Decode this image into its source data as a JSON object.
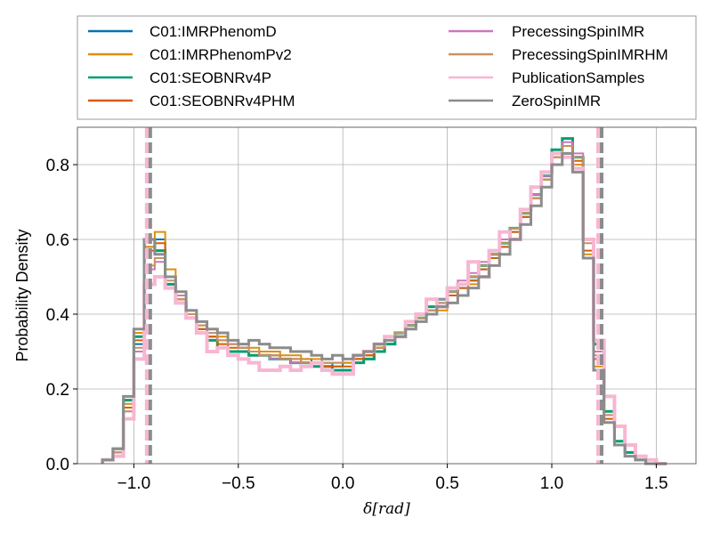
{
  "chart_data": {
    "type": "line",
    "subtype": "step-histogram",
    "xlabel": "δ[rad]",
    "ylabel": "Probability Density",
    "xlim": [
      -1.27,
      1.69
    ],
    "ylim": [
      0,
      0.9
    ],
    "xticks": [
      -1.0,
      -0.5,
      0.0,
      0.5,
      1.0,
      1.5
    ],
    "xtick_labels": [
      "−1.0",
      "−0.5",
      "0.0",
      "0.5",
      "1.0",
      "1.5"
    ],
    "yticks": [
      0.0,
      0.2,
      0.4,
      0.6,
      0.8
    ],
    "ytick_labels": [
      "0.0",
      "0.2",
      "0.4",
      "0.6",
      "0.8"
    ],
    "grid": true,
    "legend_position": "above plot, two columns",
    "vertical_lines": [
      {
        "x": -0.93,
        "style": "dashed",
        "colors": [
          "#f7b6d2",
          "#8c8c8c"
        ]
      },
      {
        "x": 1.23,
        "style": "dashed",
        "colors": [
          "#f7b6d2",
          "#8c8c8c"
        ]
      }
    ],
    "series": [
      {
        "name": "C01:IMRPhenomD",
        "color": "#0173b2",
        "width": 2,
        "x": [
          -1.15,
          -1.1,
          -1.05,
          -1.0,
          -0.95,
          -0.9,
          -0.85,
          -0.8,
          -0.75,
          -0.7,
          -0.65,
          -0.6,
          -0.55,
          -0.5,
          -0.45,
          -0.4,
          -0.35,
          -0.3,
          -0.25,
          -0.2,
          -0.15,
          -0.1,
          -0.05,
          0.0,
          0.05,
          0.1,
          0.15,
          0.2,
          0.25,
          0.3,
          0.35,
          0.4,
          0.45,
          0.5,
          0.55,
          0.6,
          0.65,
          0.7,
          0.75,
          0.8,
          0.85,
          0.9,
          0.95,
          1.0,
          1.05,
          1.1,
          1.15,
          1.2,
          1.25,
          1.3,
          1.35,
          1.4,
          1.45,
          1.5
        ],
        "y": [
          0.01,
          0.03,
          0.15,
          0.32,
          0.58,
          0.6,
          0.5,
          0.45,
          0.4,
          0.36,
          0.34,
          0.33,
          0.32,
          0.31,
          0.3,
          0.29,
          0.29,
          0.28,
          0.28,
          0.28,
          0.27,
          0.27,
          0.26,
          0.27,
          0.28,
          0.29,
          0.31,
          0.33,
          0.35,
          0.37,
          0.39,
          0.41,
          0.43,
          0.45,
          0.47,
          0.49,
          0.52,
          0.55,
          0.58,
          0.62,
          0.66,
          0.71,
          0.76,
          0.82,
          0.85,
          0.8,
          0.55,
          0.25,
          0.11,
          0.05,
          0.02,
          0.01,
          0.0,
          0.0
        ]
      },
      {
        "name": "C01:IMRPhenomPv2",
        "color": "#de8f05",
        "width": 2,
        "x": [
          -1.15,
          -1.1,
          -1.05,
          -1.0,
          -0.95,
          -0.9,
          -0.85,
          -0.8,
          -0.75,
          -0.7,
          -0.65,
          -0.6,
          -0.55,
          -0.5,
          -0.45,
          -0.4,
          -0.35,
          -0.3,
          -0.25,
          -0.2,
          -0.15,
          -0.1,
          -0.05,
          0.0,
          0.05,
          0.1,
          0.15,
          0.2,
          0.25,
          0.3,
          0.35,
          0.4,
          0.45,
          0.5,
          0.55,
          0.6,
          0.65,
          0.7,
          0.75,
          0.8,
          0.85,
          0.9,
          0.95,
          1.0,
          1.05,
          1.1,
          1.15,
          1.2,
          1.25,
          1.3,
          1.35,
          1.4,
          1.45,
          1.5
        ],
        "y": [
          0.01,
          0.03,
          0.16,
          0.35,
          0.58,
          0.62,
          0.52,
          0.44,
          0.4,
          0.37,
          0.35,
          0.34,
          0.33,
          0.32,
          0.31,
          0.3,
          0.3,
          0.29,
          0.29,
          0.28,
          0.28,
          0.27,
          0.27,
          0.27,
          0.28,
          0.29,
          0.31,
          0.32,
          0.34,
          0.36,
          0.38,
          0.4,
          0.41,
          0.43,
          0.45,
          0.48,
          0.5,
          0.53,
          0.56,
          0.6,
          0.64,
          0.69,
          0.74,
          0.8,
          0.83,
          0.8,
          0.56,
          0.26,
          0.12,
          0.05,
          0.02,
          0.01,
          0.0,
          0.0
        ]
      },
      {
        "name": "C01:SEOBNRv4P",
        "color": "#029e73",
        "width": 3,
        "x": [
          -1.15,
          -1.1,
          -1.05,
          -1.0,
          -0.95,
          -0.9,
          -0.85,
          -0.8,
          -0.75,
          -0.7,
          -0.65,
          -0.6,
          -0.55,
          -0.5,
          -0.45,
          -0.4,
          -0.35,
          -0.3,
          -0.25,
          -0.2,
          -0.15,
          -0.1,
          -0.05,
          0.0,
          0.05,
          0.1,
          0.15,
          0.2,
          0.25,
          0.3,
          0.35,
          0.4,
          0.45,
          0.5,
          0.55,
          0.6,
          0.65,
          0.7,
          0.75,
          0.8,
          0.85,
          0.9,
          0.95,
          1.0,
          1.05,
          1.1,
          1.15,
          1.2,
          1.25,
          1.3,
          1.35,
          1.4,
          1.45,
          1.5
        ],
        "y": [
          0.01,
          0.04,
          0.17,
          0.34,
          0.6,
          0.57,
          0.48,
          0.43,
          0.39,
          0.35,
          0.33,
          0.31,
          0.3,
          0.3,
          0.29,
          0.29,
          0.28,
          0.28,
          0.27,
          0.27,
          0.26,
          0.26,
          0.25,
          0.25,
          0.27,
          0.28,
          0.3,
          0.32,
          0.35,
          0.37,
          0.39,
          0.42,
          0.44,
          0.46,
          0.48,
          0.5,
          0.53,
          0.56,
          0.59,
          0.63,
          0.67,
          0.72,
          0.77,
          0.84,
          0.87,
          0.82,
          0.6,
          0.32,
          0.14,
          0.06,
          0.03,
          0.01,
          0.0,
          0.0
        ]
      },
      {
        "name": "C01:SEOBNRv4PHM",
        "color": "#d55e00",
        "width": 2,
        "x": [
          -1.15,
          -1.1,
          -1.05,
          -1.0,
          -0.95,
          -0.9,
          -0.85,
          -0.8,
          -0.75,
          -0.7,
          -0.65,
          -0.6,
          -0.55,
          -0.5,
          -0.45,
          -0.4,
          -0.35,
          -0.3,
          -0.25,
          -0.2,
          -0.15,
          -0.1,
          -0.05,
          0.0,
          0.05,
          0.1,
          0.15,
          0.2,
          0.25,
          0.3,
          0.35,
          0.4,
          0.45,
          0.5,
          0.55,
          0.6,
          0.65,
          0.7,
          0.75,
          0.8,
          0.85,
          0.9,
          0.95,
          1.0,
          1.05,
          1.1,
          1.15,
          1.2,
          1.25,
          1.3,
          1.35,
          1.4,
          1.45,
          1.5
        ],
        "y": [
          0.01,
          0.03,
          0.15,
          0.33,
          0.57,
          0.59,
          0.5,
          0.44,
          0.4,
          0.36,
          0.34,
          0.32,
          0.31,
          0.31,
          0.3,
          0.29,
          0.29,
          0.28,
          0.28,
          0.27,
          0.27,
          0.26,
          0.26,
          0.26,
          0.28,
          0.29,
          0.31,
          0.33,
          0.35,
          0.37,
          0.39,
          0.41,
          0.43,
          0.45,
          0.47,
          0.49,
          0.52,
          0.55,
          0.58,
          0.62,
          0.66,
          0.71,
          0.76,
          0.82,
          0.85,
          0.81,
          0.57,
          0.28,
          0.12,
          0.05,
          0.02,
          0.01,
          0.0,
          0.0
        ]
      },
      {
        "name": "PrecessingSpinIMR",
        "color": "#cc78bc",
        "width": 2,
        "x": [
          -1.15,
          -1.1,
          -1.05,
          -1.0,
          -0.95,
          -0.9,
          -0.85,
          -0.8,
          -0.75,
          -0.7,
          -0.65,
          -0.6,
          -0.55,
          -0.5,
          -0.45,
          -0.4,
          -0.35,
          -0.3,
          -0.25,
          -0.2,
          -0.15,
          -0.1,
          -0.05,
          0.0,
          0.05,
          0.1,
          0.15,
          0.2,
          0.25,
          0.3,
          0.35,
          0.4,
          0.45,
          0.5,
          0.55,
          0.6,
          0.65,
          0.7,
          0.75,
          0.8,
          0.85,
          0.9,
          0.95,
          1.0,
          1.05,
          1.1,
          1.15,
          1.2,
          1.25,
          1.3,
          1.35,
          1.4,
          1.45,
          1.5
        ],
        "y": [
          0.01,
          0.03,
          0.14,
          0.3,
          0.52,
          0.54,
          0.5,
          0.45,
          0.41,
          0.37,
          0.35,
          0.33,
          0.32,
          0.31,
          0.3,
          0.29,
          0.28,
          0.28,
          0.27,
          0.27,
          0.27,
          0.27,
          0.27,
          0.28,
          0.29,
          0.3,
          0.32,
          0.33,
          0.35,
          0.37,
          0.39,
          0.41,
          0.44,
          0.46,
          0.49,
          0.51,
          0.54,
          0.57,
          0.6,
          0.63,
          0.67,
          0.72,
          0.77,
          0.83,
          0.86,
          0.83,
          0.6,
          0.3,
          0.13,
          0.05,
          0.02,
          0.01,
          0.0,
          0.0
        ]
      },
      {
        "name": "PrecessingSpinIMRHM",
        "color": "#ca9161",
        "width": 2,
        "x": [
          -1.15,
          -1.1,
          -1.05,
          -1.0,
          -0.95,
          -0.9,
          -0.85,
          -0.8,
          -0.75,
          -0.7,
          -0.65,
          -0.6,
          -0.55,
          -0.5,
          -0.45,
          -0.4,
          -0.35,
          -0.3,
          -0.25,
          -0.2,
          -0.15,
          -0.1,
          -0.05,
          0.0,
          0.05,
          0.1,
          0.15,
          0.2,
          0.25,
          0.3,
          0.35,
          0.4,
          0.45,
          0.5,
          0.55,
          0.6,
          0.65,
          0.7,
          0.75,
          0.8,
          0.85,
          0.9,
          0.95,
          1.0,
          1.05,
          1.1,
          1.15,
          1.2,
          1.25,
          1.3,
          1.35,
          1.4,
          1.45,
          1.5
        ],
        "y": [
          0.01,
          0.03,
          0.14,
          0.31,
          0.53,
          0.55,
          0.49,
          0.44,
          0.4,
          0.37,
          0.35,
          0.33,
          0.32,
          0.31,
          0.3,
          0.29,
          0.29,
          0.28,
          0.28,
          0.27,
          0.27,
          0.27,
          0.27,
          0.28,
          0.29,
          0.3,
          0.31,
          0.33,
          0.35,
          0.37,
          0.39,
          0.41,
          0.43,
          0.46,
          0.48,
          0.5,
          0.53,
          0.56,
          0.59,
          0.63,
          0.67,
          0.71,
          0.76,
          0.82,
          0.85,
          0.82,
          0.59,
          0.29,
          0.13,
          0.05,
          0.02,
          0.01,
          0.0,
          0.0
        ]
      },
      {
        "name": "PublicationSamples",
        "color": "#f7b6d2",
        "width": 4,
        "x": [
          -1.15,
          -1.1,
          -1.05,
          -1.0,
          -0.95,
          -0.9,
          -0.85,
          -0.8,
          -0.75,
          -0.7,
          -0.65,
          -0.6,
          -0.55,
          -0.5,
          -0.45,
          -0.4,
          -0.35,
          -0.3,
          -0.25,
          -0.2,
          -0.15,
          -0.1,
          -0.05,
          0.0,
          0.05,
          0.1,
          0.15,
          0.2,
          0.25,
          0.3,
          0.35,
          0.4,
          0.45,
          0.5,
          0.55,
          0.6,
          0.65,
          0.7,
          0.75,
          0.8,
          0.85,
          0.9,
          0.95,
          1.0,
          1.05,
          1.1,
          1.15,
          1.2,
          1.25,
          1.3,
          1.35,
          1.4,
          1.45,
          1.5
        ],
        "y": [
          0.01,
          0.02,
          0.12,
          0.28,
          0.48,
          0.5,
          0.47,
          0.43,
          0.39,
          0.35,
          0.3,
          0.31,
          0.29,
          0.28,
          0.27,
          0.25,
          0.25,
          0.26,
          0.25,
          0.26,
          0.27,
          0.25,
          0.24,
          0.24,
          0.29,
          0.3,
          0.32,
          0.34,
          0.34,
          0.38,
          0.4,
          0.44,
          0.42,
          0.47,
          0.48,
          0.54,
          0.5,
          0.57,
          0.62,
          0.6,
          0.68,
          0.74,
          0.78,
          0.83,
          0.82,
          0.79,
          0.6,
          0.33,
          0.18,
          0.1,
          0.05,
          0.02,
          0.01,
          0.0
        ]
      },
      {
        "name": "ZeroSpinIMR",
        "color": "#8c8c8c",
        "width": 3,
        "x": [
          -1.15,
          -1.1,
          -1.05,
          -1.0,
          -0.95,
          -0.9,
          -0.85,
          -0.8,
          -0.75,
          -0.7,
          -0.65,
          -0.6,
          -0.55,
          -0.5,
          -0.45,
          -0.4,
          -0.35,
          -0.3,
          -0.25,
          -0.2,
          -0.15,
          -0.1,
          -0.05,
          0.0,
          0.05,
          0.1,
          0.15,
          0.2,
          0.25,
          0.3,
          0.35,
          0.4,
          0.45,
          0.5,
          0.55,
          0.6,
          0.65,
          0.7,
          0.75,
          0.8,
          0.85,
          0.9,
          0.95,
          1.0,
          1.05,
          1.1,
          1.15,
          1.2,
          1.25,
          1.3,
          1.35,
          1.4,
          1.45,
          1.5
        ],
        "y": [
          0.01,
          0.04,
          0.18,
          0.36,
          0.6,
          0.56,
          0.5,
          0.46,
          0.41,
          0.38,
          0.36,
          0.35,
          0.33,
          0.32,
          0.33,
          0.32,
          0.31,
          0.31,
          0.3,
          0.3,
          0.29,
          0.28,
          0.29,
          0.28,
          0.29,
          0.3,
          0.32,
          0.33,
          0.34,
          0.36,
          0.38,
          0.4,
          0.42,
          0.43,
          0.45,
          0.47,
          0.5,
          0.53,
          0.56,
          0.6,
          0.64,
          0.69,
          0.74,
          0.8,
          0.83,
          0.78,
          0.55,
          0.25,
          0.11,
          0.05,
          0.02,
          0.01,
          0.0,
          0.0
        ]
      }
    ]
  }
}
